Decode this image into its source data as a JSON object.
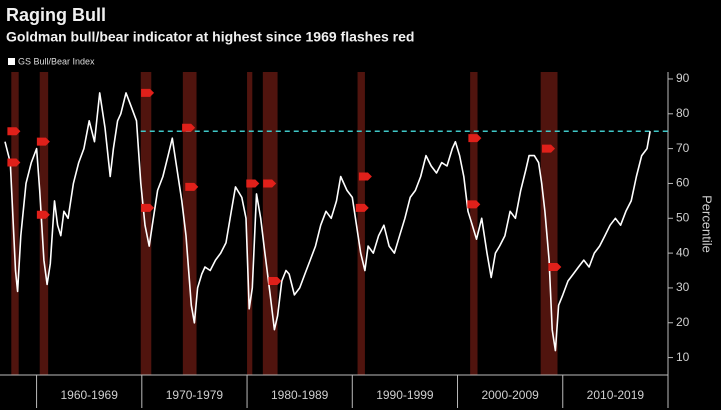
{
  "chart_data": {
    "type": "line",
    "title": "Raging Bull",
    "subtitle": "Goldman bull/bear indicator at highest since 1969 flashes red",
    "y_label": "Percentile",
    "xlim": [
      1957,
      2020
    ],
    "xticks": [
      1960,
      1970,
      1980,
      1990,
      2000,
      2010,
      2020
    ],
    "period_labels": [
      "1960-1969",
      "1970-1979",
      "1980-1989",
      "1990-1999",
      "2000-2009",
      "2010-2019"
    ],
    "ylim": [
      5,
      92
    ],
    "yticks": [
      10,
      20,
      30,
      40,
      50,
      60,
      70,
      80,
      90
    ],
    "axis_side": "right",
    "background": "#000000",
    "x": [
      1957.0,
      1957.5,
      1958.0,
      1958.2,
      1958.5,
      1959.0,
      1959.5,
      1960.0,
      1960.3,
      1960.7,
      1961.0,
      1961.3,
      1961.7,
      1962.0,
      1962.3,
      1962.6,
      1963.0,
      1963.5,
      1964.0,
      1964.5,
      1965.0,
      1965.5,
      1966.0,
      1966.5,
      1967.0,
      1967.3,
      1967.7,
      1968.0,
      1968.5,
      1969.0,
      1969.5,
      1969.9,
      1970.3,
      1970.7,
      1971.0,
      1971.5,
      1972.0,
      1972.5,
      1972.9,
      1973.3,
      1973.8,
      1974.2,
      1974.7,
      1975.0,
      1975.3,
      1975.7,
      1976.0,
      1976.5,
      1977.0,
      1977.5,
      1978.0,
      1978.5,
      1978.9,
      1979.5,
      1979.9,
      1980.2,
      1980.5,
      1980.9,
      1981.3,
      1981.7,
      1982.2,
      1982.6,
      1982.9,
      1983.3,
      1983.7,
      1984.0,
      1984.5,
      1985.0,
      1985.5,
      1986.0,
      1986.5,
      1987.0,
      1987.5,
      1988.0,
      1988.5,
      1988.9,
      1989.5,
      1990.0,
      1990.4,
      1990.8,
      1991.2,
      1991.5,
      1992.0,
      1992.5,
      1993.0,
      1993.5,
      1994.0,
      1994.5,
      1995.0,
      1995.5,
      1996.0,
      1996.5,
      1997.0,
      1997.5,
      1998.0,
      1998.5,
      1999.0,
      1999.5,
      1999.8,
      2000.2,
      2000.6,
      2001.0,
      2001.4,
      2001.8,
      2002.3,
      2002.8,
      2003.2,
      2003.6,
      2004.0,
      2004.5,
      2005.0,
      2005.5,
      2006.0,
      2006.5,
      2006.8,
      2007.3,
      2007.7,
      2008.0,
      2008.3,
      2008.7,
      2009.0,
      2009.3,
      2009.6,
      2010.0,
      2010.5,
      2011.0,
      2011.5,
      2012.0,
      2012.5,
      2013.0,
      2013.5,
      2014.0,
      2014.5,
      2015.0,
      2015.5,
      2016.0,
      2016.5,
      2017.0,
      2017.5,
      2018.0,
      2018.3
    ],
    "series": [
      {
        "name": "GS Bull/Bear Index",
        "color": "#ffffff",
        "values": [
          72,
          66,
          35,
          29,
          45,
          60,
          66,
          70,
          58,
          38,
          31,
          37,
          55,
          48,
          45,
          52,
          50,
          60,
          66,
          70,
          78,
          72,
          86,
          76,
          62,
          70,
          78,
          80,
          86,
          82,
          78,
          60,
          48,
          42,
          48,
          58,
          62,
          68,
          73,
          65,
          55,
          45,
          25,
          20,
          30,
          34,
          36,
          35,
          38,
          40,
          43,
          52,
          59,
          56,
          50,
          24,
          30,
          57,
          50,
          40,
          28,
          18,
          22,
          32,
          35,
          34,
          28,
          30,
          34,
          38,
          42,
          48,
          52,
          50,
          55,
          62,
          58,
          56,
          48,
          40,
          35,
          42,
          40,
          45,
          48,
          42,
          40,
          45,
          50,
          56,
          58,
          62,
          68,
          65,
          63,
          66,
          65,
          70,
          72,
          68,
          62,
          52,
          48,
          44,
          50,
          40,
          33,
          40,
          42,
          45,
          52,
          50,
          58,
          64,
          68,
          68,
          66,
          60,
          52,
          38,
          18,
          12,
          25,
          28,
          32,
          34,
          36,
          38,
          36,
          40,
          42,
          45,
          48,
          50,
          48,
          52,
          55,
          62,
          68,
          70,
          75
        ]
      }
    ],
    "shaded_periods": [
      [
        1957.6,
        1958.3
      ],
      [
        1960.3,
        1961.1
      ],
      [
        1969.9,
        1970.9
      ],
      [
        1973.9,
        1975.2
      ],
      [
        1980.0,
        1980.5
      ],
      [
        1981.5,
        1982.9
      ],
      [
        1990.5,
        1991.2
      ],
      [
        2001.2,
        2001.9
      ],
      [
        2007.9,
        2009.5
      ]
    ],
    "shade_color": "#5e1810",
    "reference_line": {
      "value": 75,
      "start": 1969.9,
      "color": "#3fc8c8"
    },
    "markers": {
      "color": "#e0201a",
      "x": [
        1957.8,
        1957.8,
        1960.6,
        1960.6,
        1970.5,
        1970.5,
        1974.4,
        1974.7,
        1980.5,
        1982.1,
        1982.6,
        1991.2,
        1990.9,
        2001.6,
        2001.5,
        2008.6,
        2009.2
      ],
      "y": [
        75,
        66,
        72,
        51,
        86,
        53,
        76,
        59,
        60,
        60,
        32,
        62,
        53,
        73,
        54,
        70,
        36
      ]
    }
  }
}
